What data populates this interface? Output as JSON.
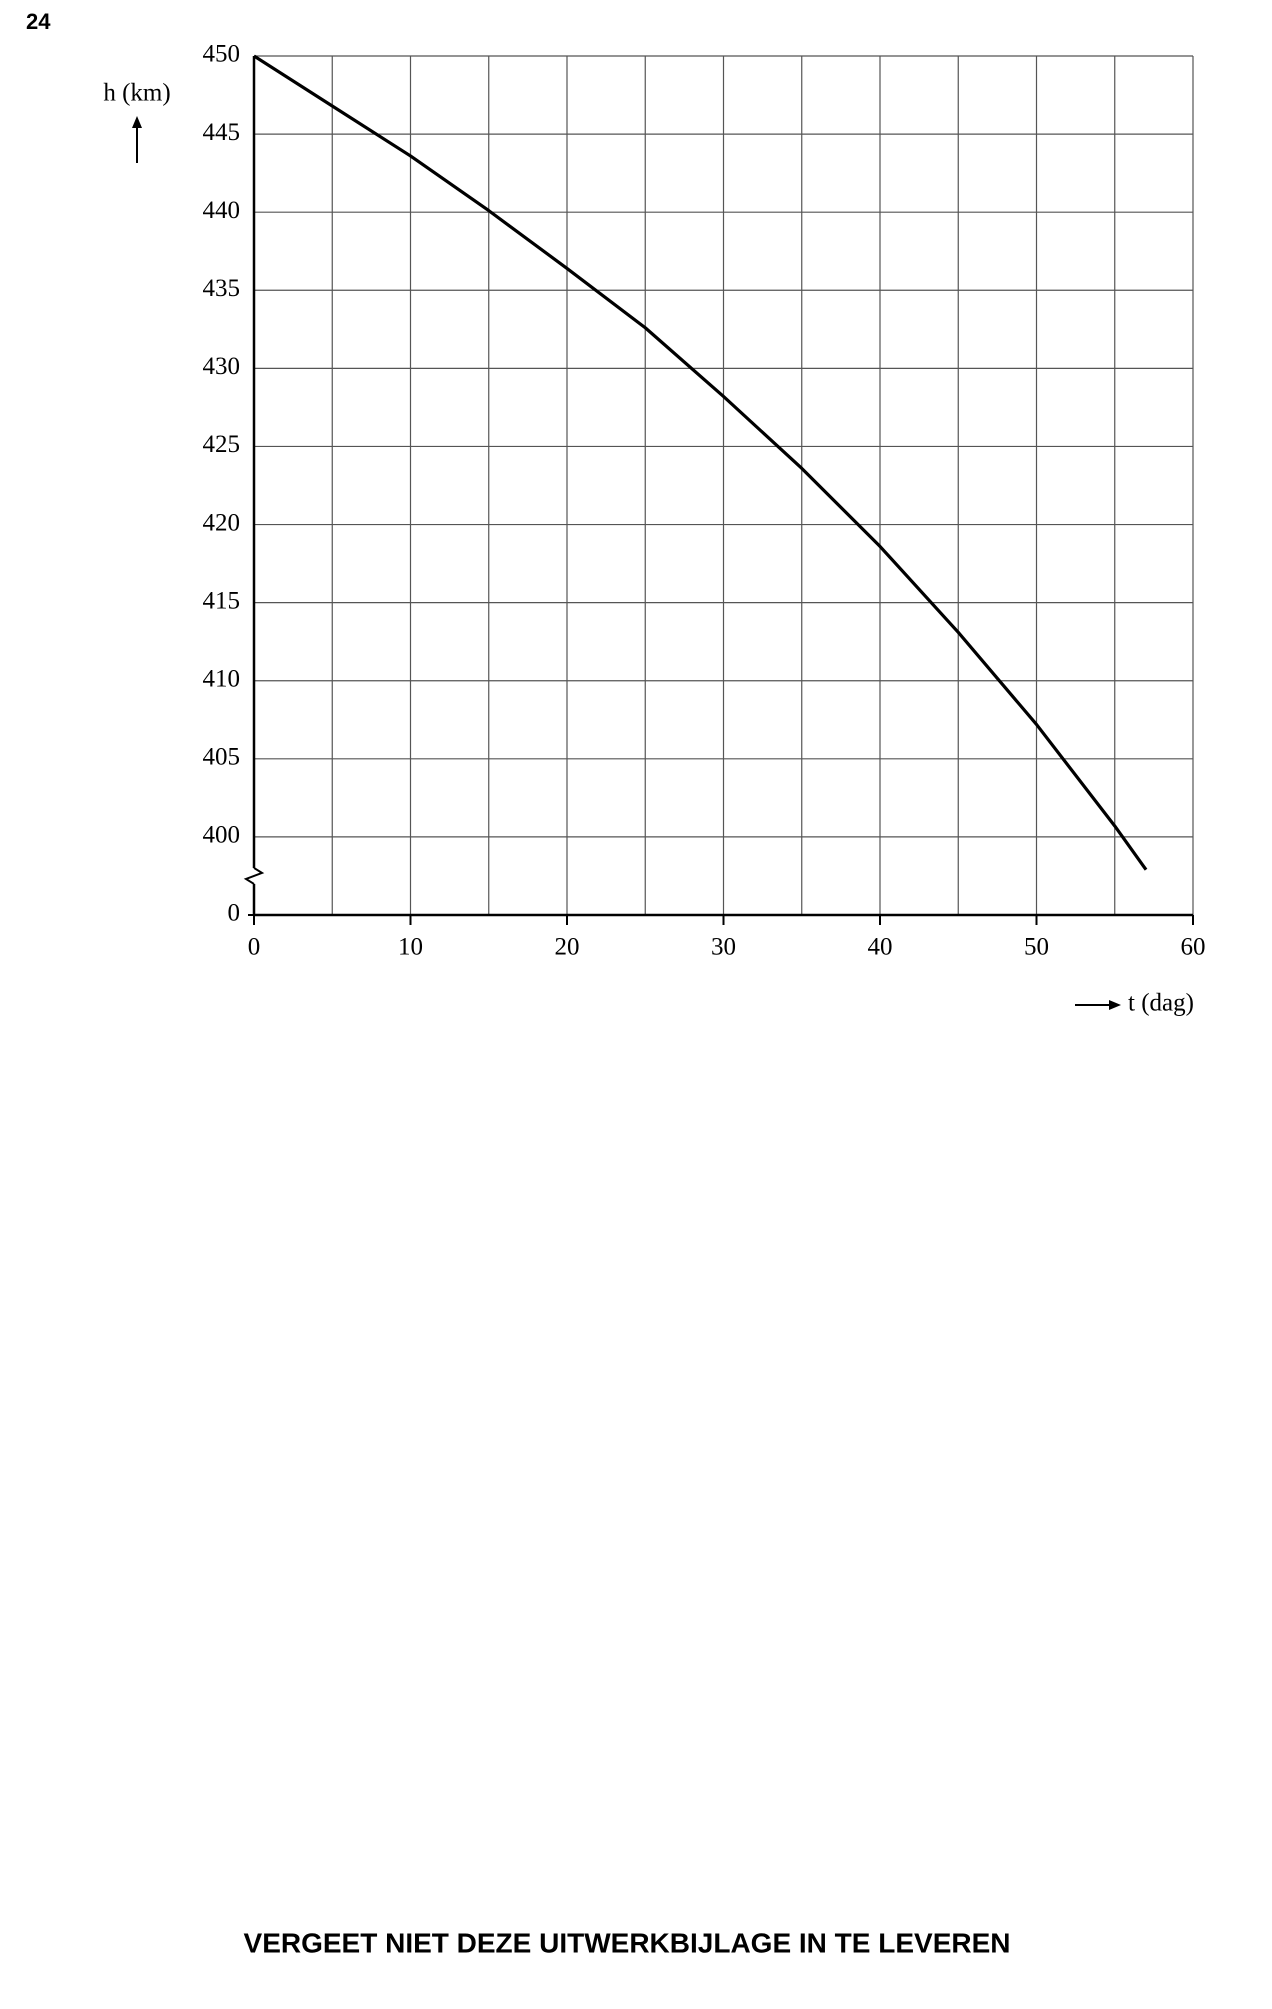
{
  "page_number": "24",
  "footer": "VERGEET NIET DEZE UITWERKBIJLAGE IN TE LEVEREN",
  "chart_data": {
    "type": "line",
    "ylabel": "h (km)",
    "xlabel": "t (dag)",
    "x": [
      0,
      5,
      10,
      15,
      20,
      25,
      30,
      35,
      40,
      45,
      50,
      55,
      57
    ],
    "values": [
      450,
      446.8,
      443.6,
      440.1,
      436.4,
      432.6,
      428.2,
      423.6,
      418.6,
      413.1,
      407.2,
      400.7,
      397.9
    ],
    "color": "#000000",
    "xlim": [
      0,
      60
    ],
    "xticks": [
      0,
      10,
      20,
      30,
      40,
      50,
      60
    ],
    "xgrid": [
      5,
      10,
      15,
      20,
      25,
      30,
      35,
      40,
      45,
      50,
      55,
      60
    ],
    "ylim": [
      395,
      450
    ],
    "yticks": [
      0,
      400,
      405,
      410,
      415,
      420,
      425,
      430,
      435,
      440,
      445,
      450
    ],
    "grid": true,
    "axis_break": true
  }
}
